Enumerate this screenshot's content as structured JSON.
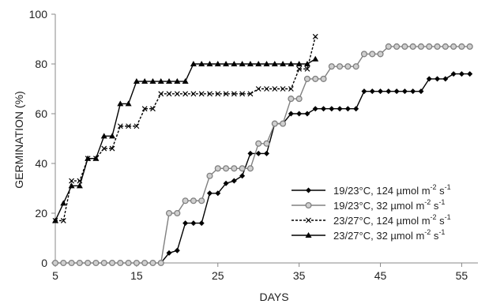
{
  "chart_data": {
    "type": "line",
    "xlabel": "DAYS",
    "ylabel": "GERMINATION (%)",
    "xlim": [
      5,
      57
    ],
    "ylim": [
      0,
      100
    ],
    "xticks": [
      5,
      15,
      25,
      35,
      45,
      55
    ],
    "yticks": [
      0,
      20,
      40,
      60,
      80,
      100
    ],
    "grid": false,
    "legend_position": "bottom-right",
    "series": [
      {
        "name": "19/23°C, 124 µmol m-2 s-1",
        "label_parts": [
          "19/23°C, 124 µmol m",
          "-2",
          " s",
          "-1"
        ],
        "marker": "diamond",
        "line": "solid",
        "color": "#000000",
        "x": [
          18,
          19,
          20,
          21,
          22,
          23,
          24,
          25,
          26,
          27,
          28,
          29,
          30,
          31,
          32,
          33,
          34,
          35,
          36,
          37,
          38,
          39,
          40,
          41,
          42,
          43,
          44,
          45,
          46,
          47,
          48,
          49,
          50,
          51,
          52,
          53,
          54,
          55,
          56
        ],
        "y": [
          0,
          4,
          5,
          16,
          16,
          16,
          28,
          28,
          32,
          33,
          35,
          44,
          44,
          44,
          56,
          56,
          60,
          60,
          60,
          62,
          62,
          62,
          62,
          62,
          62,
          69,
          69,
          69,
          69,
          69,
          69,
          69,
          69,
          74,
          74,
          74,
          76,
          76,
          76
        ]
      },
      {
        "name": "19/23°C, 32 µmol m-2 s-1",
        "label_parts": [
          "19/23°C, 32 µmol m",
          "-2",
          " s",
          "-1"
        ],
        "marker": "circle",
        "line": "solid",
        "color": "#808080",
        "x": [
          5,
          6,
          7,
          8,
          9,
          10,
          11,
          12,
          13,
          14,
          15,
          16,
          17,
          18,
          19,
          20,
          21,
          22,
          23,
          24,
          25,
          26,
          27,
          28,
          29,
          30,
          31,
          32,
          33,
          34,
          35,
          36,
          37,
          38,
          39,
          40,
          41,
          42,
          43,
          44,
          45,
          46,
          47,
          48,
          49,
          50,
          51,
          52,
          53,
          54,
          55,
          56
        ],
        "y": [
          0,
          0,
          0,
          0,
          0,
          0,
          0,
          0,
          0,
          0,
          0,
          0,
          0,
          0,
          20,
          20,
          25,
          25,
          25,
          35,
          38,
          38,
          38,
          38,
          38,
          48,
          48,
          56,
          56,
          66,
          66,
          74,
          74,
          74,
          79,
          79,
          79,
          79,
          84,
          84,
          84,
          87,
          87,
          87,
          87,
          87,
          87,
          87,
          87,
          87,
          87,
          87
        ]
      },
      {
        "name": "23/27°C, 124 µmol m-2 s-1",
        "label_parts": [
          "23/27°C, 124 µmol m",
          "-2",
          " s",
          "-1"
        ],
        "marker": "x",
        "line": "dashed",
        "color": "#000000",
        "x": [
          5,
          6,
          7,
          8,
          9,
          10,
          11,
          12,
          13,
          14,
          15,
          16,
          17,
          18,
          19,
          20,
          21,
          22,
          23,
          24,
          25,
          26,
          27,
          28,
          29,
          30,
          31,
          32,
          33,
          34,
          35,
          36,
          37
        ],
        "y": [
          17,
          17,
          33,
          33,
          42,
          42,
          46,
          46,
          55,
          55,
          55,
          62,
          62,
          68,
          68,
          68,
          68,
          68,
          68,
          68,
          68,
          68,
          68,
          68,
          68,
          70,
          70,
          70,
          70,
          70,
          78,
          78,
          91
        ]
      },
      {
        "name": "23/27°C, 32 µmol m-2 s-1",
        "label_parts": [
          "23/27°C, 32 µmol m",
          "-2",
          " s",
          "-1"
        ],
        "marker": "triangle",
        "line": "solid",
        "color": "#000000",
        "x": [
          5,
          6,
          7,
          8,
          9,
          10,
          11,
          12,
          13,
          14,
          15,
          16,
          17,
          18,
          19,
          20,
          21,
          22,
          23,
          24,
          25,
          26,
          27,
          28,
          29,
          30,
          31,
          32,
          33,
          34,
          35,
          36,
          37
        ],
        "y": [
          17,
          24,
          31,
          31,
          42,
          42,
          51,
          51,
          64,
          64,
          73,
          73,
          73,
          73,
          73,
          73,
          73,
          80,
          80,
          80,
          80,
          80,
          80,
          80,
          80,
          80,
          80,
          80,
          80,
          80,
          80,
          80,
          82
        ]
      }
    ]
  }
}
